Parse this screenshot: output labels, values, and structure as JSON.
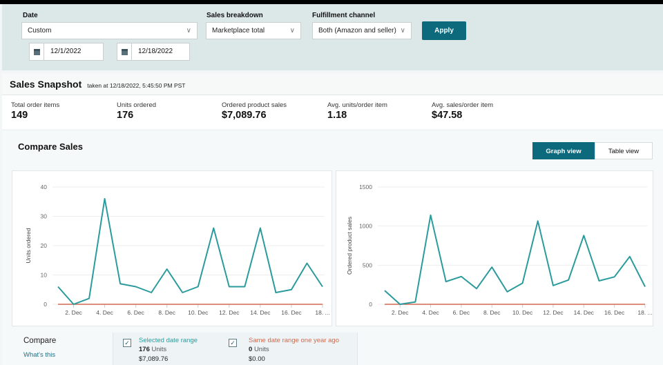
{
  "filters": {
    "date_label": "Date",
    "date_value": "Custom",
    "start_date": "12/1/2022",
    "end_date": "12/18/2022",
    "breakdown_label": "Sales breakdown",
    "breakdown_value": "Marketplace total",
    "channel_label": "Fulfillment channel",
    "channel_value": "Both (Amazon and seller)",
    "apply": "Apply"
  },
  "snapshot": {
    "title": "Sales Snapshot",
    "taken": "taken at 12/18/2022, 5:45:50 PM PST",
    "metrics": [
      {
        "label": "Total order items",
        "value": "149"
      },
      {
        "label": "Units ordered",
        "value": "176"
      },
      {
        "label": "Ordered product sales",
        "value": "$7,089.76"
      },
      {
        "label": "Avg. units/order item",
        "value": "1.18"
      },
      {
        "label": "Avg. sales/order item",
        "value": "$47.58"
      }
    ]
  },
  "compare_sales": {
    "title": "Compare Sales",
    "graph_view": "Graph view",
    "table_view": "Table view"
  },
  "colors": {
    "selected": "#2a9a9c",
    "last_year": "#d0684f",
    "accent": "#0c6a7c"
  },
  "chart_data": [
    {
      "type": "line",
      "ylabel": "Units ordered",
      "ylim": [
        0,
        40
      ],
      "yticks": [
        "0",
        "10",
        "20",
        "30",
        "40"
      ],
      "ytick_values": [
        0,
        10,
        20,
        30,
        40
      ],
      "x": [
        "1. Dec",
        "2. Dec",
        "3. Dec",
        "4. Dec",
        "5. Dec",
        "6. Dec",
        "7. Dec",
        "8. Dec",
        "9. Dec",
        "10. Dec",
        "11. Dec",
        "12. Dec",
        "13. Dec",
        "14. Dec",
        "15. Dec",
        "16. Dec",
        "17. Dec",
        "18. Dec"
      ],
      "xtick_labels": [
        "2. Dec",
        "4. Dec",
        "6. Dec",
        "8. Dec",
        "10. Dec",
        "12. Dec",
        "14. Dec",
        "16. Dec",
        "18. ..."
      ],
      "series": [
        {
          "name": "Selected date range",
          "values": [
            6,
            0,
            2,
            36,
            7,
            6,
            4,
            12,
            4,
            6,
            26,
            6,
            6,
            26,
            4,
            5,
            14,
            6
          ]
        },
        {
          "name": "Same date range one year ago",
          "values": [
            0,
            0,
            0,
            0,
            0,
            0,
            0,
            0,
            0,
            0,
            0,
            0,
            0,
            0,
            0,
            0,
            0,
            0
          ]
        }
      ]
    },
    {
      "type": "line",
      "ylabel": "Ordered product sales",
      "ylim": [
        0,
        1500
      ],
      "yticks": [
        "0",
        "500",
        "1000",
        "1500"
      ],
      "ytick_values": [
        0,
        500,
        1000,
        1500
      ],
      "x": [
        "1. Dec",
        "2. Dec",
        "3. Dec",
        "4. Dec",
        "5. Dec",
        "6. Dec",
        "7. Dec",
        "8. Dec",
        "9. Dec",
        "10. Dec",
        "11. Dec",
        "12. Dec",
        "13. Dec",
        "14. Dec",
        "15. Dec",
        "16. Dec",
        "17. Dec",
        "18. Dec"
      ],
      "xtick_labels": [
        "2. Dec",
        "4. Dec",
        "6. Dec",
        "8. Dec",
        "10. Dec",
        "12. Dec",
        "14. Dec",
        "16. Dec",
        "18. ..."
      ],
      "series": [
        {
          "name": "Selected date range",
          "values": [
            175,
            0,
            30,
            1140,
            290,
            355,
            200,
            475,
            160,
            270,
            1065,
            240,
            310,
            880,
            300,
            350,
            610,
            225
          ]
        },
        {
          "name": "Same date range one year ago",
          "values": [
            0,
            0,
            0,
            0,
            0,
            0,
            0,
            0,
            0,
            0,
            0,
            0,
            0,
            0,
            0,
            0,
            0,
            0
          ]
        }
      ]
    }
  ],
  "legend": {
    "compare": "Compare",
    "whats_this": "What's this",
    "selected": {
      "label": "Selected date range",
      "units_num": "176",
      "units_word": "Units",
      "sales": "$7,089.76"
    },
    "last_year": {
      "label": "Same date range one year ago",
      "units_num": "0",
      "units_word": "Units",
      "sales": "$0.00"
    }
  }
}
